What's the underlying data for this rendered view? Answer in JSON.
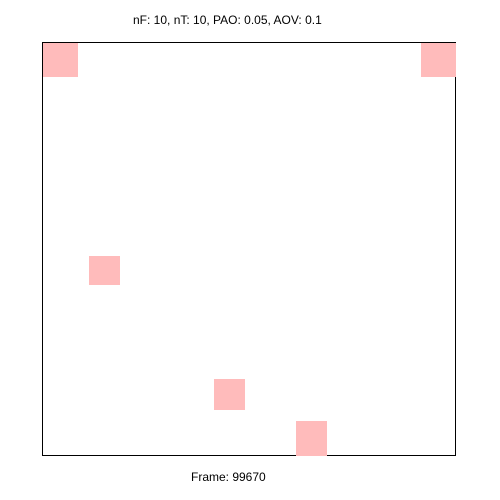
{
  "header": {
    "params_text": "nF: 10, nT: 10, PAO: 0.05, AOV: 0.1"
  },
  "board": {
    "cell_color": "#ffbbbb",
    "background_color": "#ffffff",
    "border_color": "#000000"
  },
  "footer": {
    "frame_text": "Frame: 99670"
  }
}
